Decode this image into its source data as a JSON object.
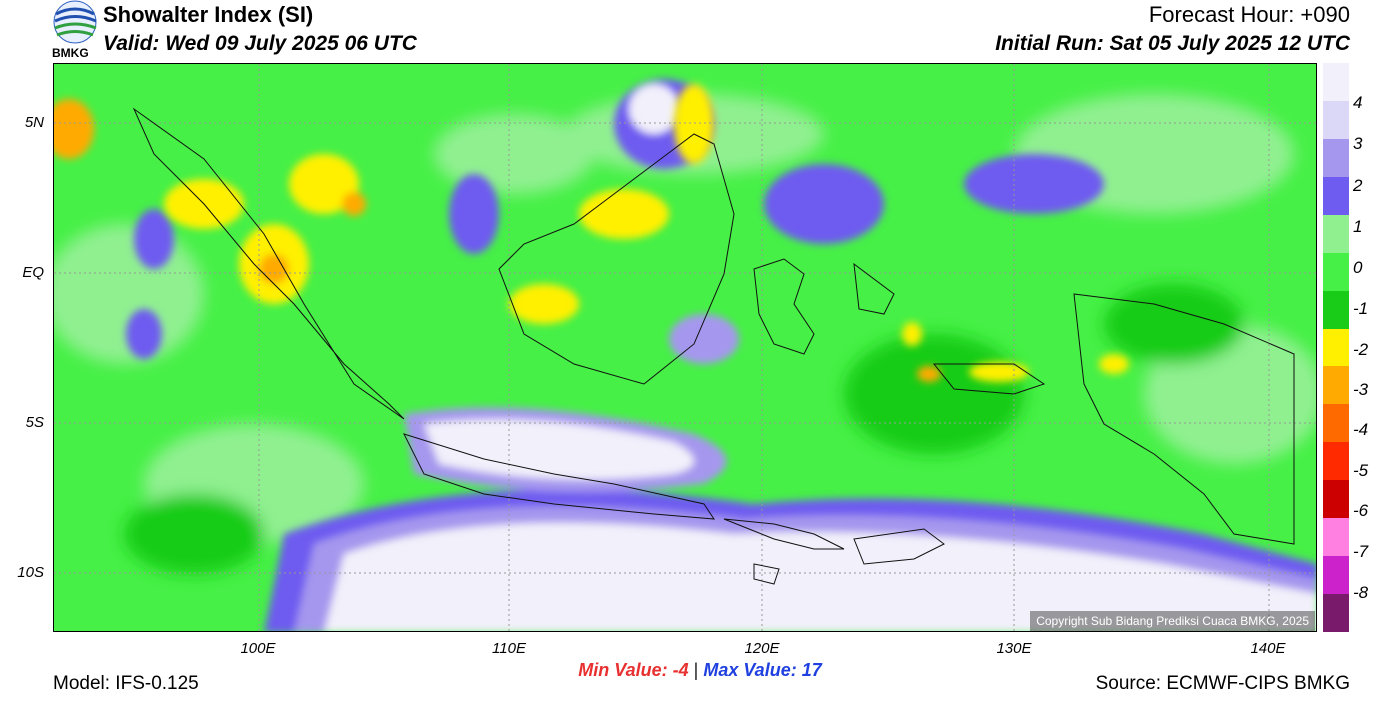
{
  "header": {
    "title": "Showalter Index (SI)",
    "valid": "Valid: Wed 09 July 2025 06 UTC",
    "forecast_hour": "Forecast Hour: +090",
    "initial_run": "Initial Run: Sat 05 July 2025 12 UTC",
    "logo_text": "BMKG"
  },
  "map": {
    "lat_labels": [
      "5N",
      "EQ",
      "5S",
      "10S"
    ],
    "lon_labels": [
      "100E",
      "110E",
      "120E",
      "130E",
      "140E"
    ],
    "copyright": "Copyright Sub Bidang Prediksi Cuaca BMKG, 2025"
  },
  "legend": {
    "labels": [
      "4",
      "3",
      "2",
      "1",
      "0",
      "-1",
      "-2",
      "-3",
      "-4",
      "-5",
      "-6",
      "-7",
      "-8"
    ],
    "colors": [
      "#f2f0fa",
      "#dad8f6",
      "#a597ee",
      "#6e5cf0",
      "#90f090",
      "#46f046",
      "#18cc18",
      "#fff000",
      "#ffaa00",
      "#ff6a00",
      "#ff2a00",
      "#cc0000",
      "#ff80e0",
      "#cc22cc",
      "#7a1a6a"
    ]
  },
  "stats": {
    "min_label": "Min Value:",
    "min_value": "-4",
    "separator": "|",
    "max_label": "Max Value:",
    "max_value": "17"
  },
  "footer": {
    "model": "Model: IFS-0.125",
    "source": "Source: ECMWF-CIPS BMKG"
  }
}
